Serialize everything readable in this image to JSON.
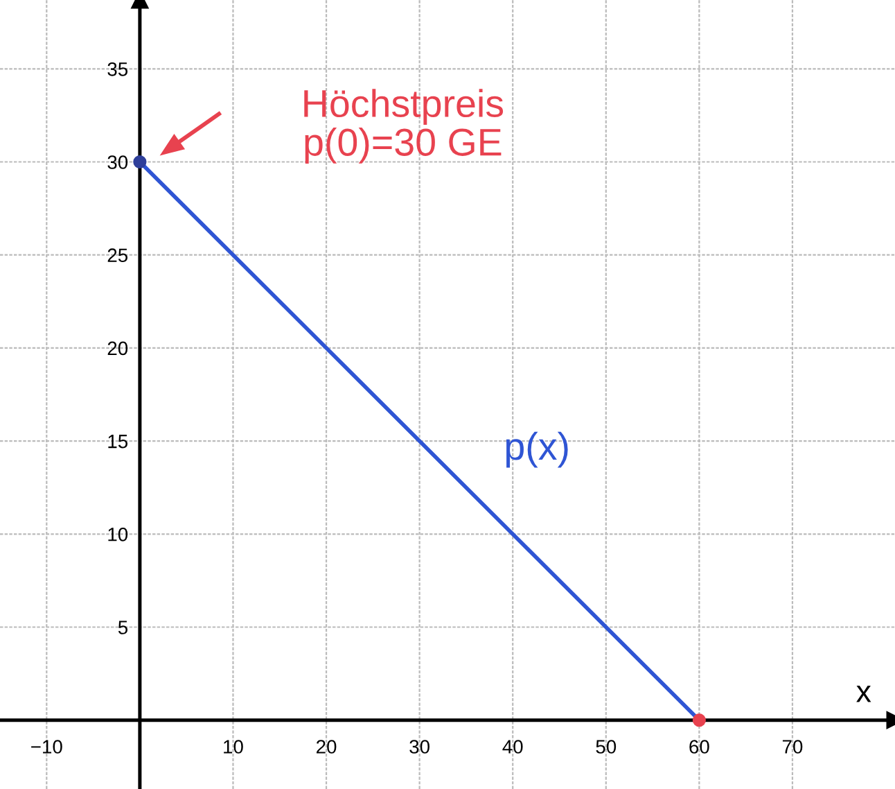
{
  "chart_data": {
    "type": "line",
    "xlabel": "x",
    "x": [
      0,
      60
    ],
    "series": [
      {
        "values": [
          30,
          0
        ],
        "color": "#2f55d4"
      },
      {
        "type": "scatter",
        "marker": "circle",
        "values": [
          30,
          0
        ],
        "colors": [
          "#2f3f9a",
          "#e8424f"
        ]
      }
    ],
    "xlim": [
      -15,
      81
    ],
    "ylim": [
      -3.7,
      38.7
    ],
    "xticks": [
      {
        "value": -10,
        "label": "−10"
      },
      10,
      20,
      30,
      40,
      50,
      60,
      70
    ],
    "yticks": [
      5,
      10,
      15,
      20,
      25,
      30,
      35
    ],
    "grid": true,
    "annotations": [
      "Höchstpreis\np(0)=30 GE",
      "p(x)"
    ]
  }
}
